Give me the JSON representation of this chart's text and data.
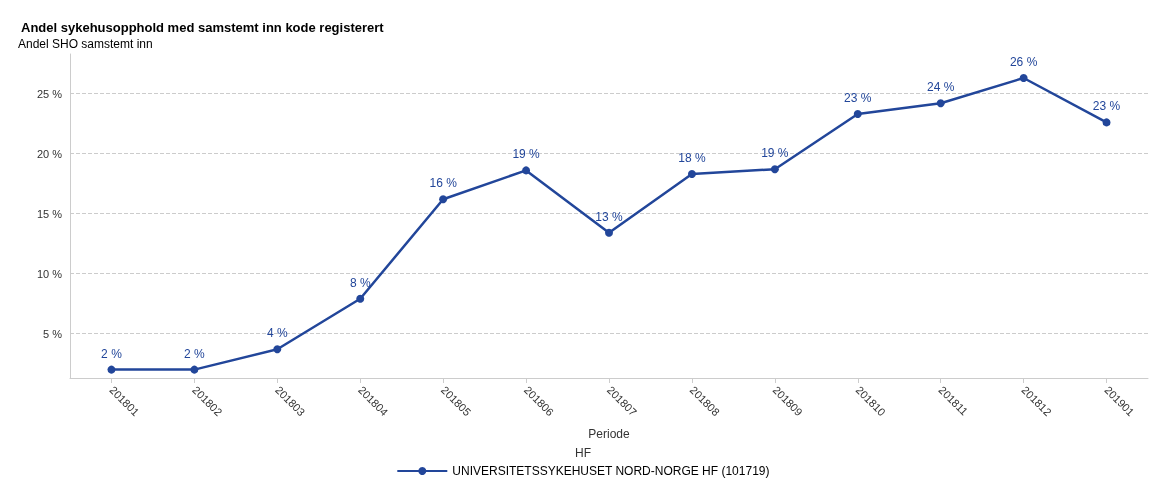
{
  "chart_data": {
    "type": "line",
    "title": "Andel sykehusopphold med samstemt inn kode registerert",
    "ylabel": "Andel SHO samstemt inn",
    "xlabel": "Periode",
    "legend_title": "HF",
    "categories": [
      "201801",
      "201802",
      "201803",
      "201804",
      "201805",
      "201806",
      "201807",
      "201808",
      "201809",
      "201810",
      "201811",
      "201812",
      "201901"
    ],
    "series": [
      {
        "name": "UNIVERSITETSSYKEHUSET NORD-NORGE HF (101719)",
        "color": "#22469a",
        "values": [
          2.0,
          2.0,
          3.7,
          7.9,
          16.2,
          18.6,
          13.4,
          18.3,
          18.7,
          23.3,
          24.2,
          26.3,
          22.6
        ],
        "value_labels": [
          "2 %",
          "2 %",
          "4 %",
          "8 %",
          "16 %",
          "19 %",
          "13 %",
          "18 %",
          "19 %",
          "23 %",
          "24 %",
          "26 %",
          "23 %"
        ]
      }
    ],
    "ylim": [
      1.3,
      28.3
    ],
    "yticks": [
      {
        "value": 5,
        "label": "5 %"
      },
      {
        "value": 10,
        "label": "10 %"
      },
      {
        "value": 15,
        "label": "15 %"
      },
      {
        "value": 20,
        "label": "20 %"
      },
      {
        "value": 25,
        "label": "25 %"
      }
    ],
    "grid": "y",
    "legend": "bottom",
    "marker": "circle",
    "line_style": "solid"
  }
}
